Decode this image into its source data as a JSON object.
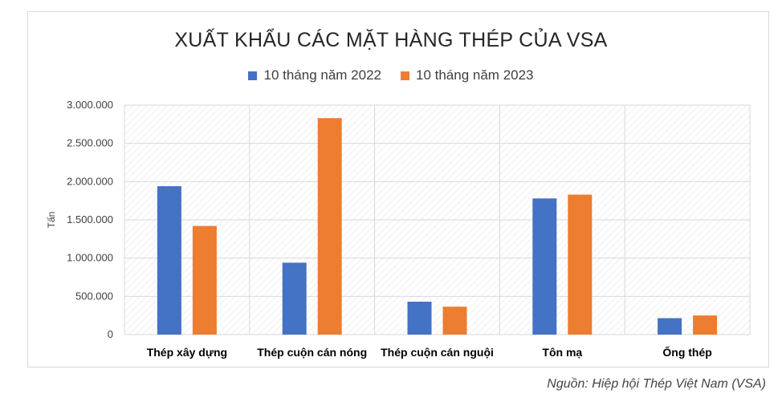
{
  "chart_data": {
    "type": "bar",
    "title": "XUẤT KHẨU CÁC MẶT HÀNG THÉP CỦA VSA",
    "ylabel": "Tấn",
    "xlabel": "",
    "categories": [
      "Thép xây dựng",
      "Thép cuộn cán nóng",
      "Thép cuộn cán nguội",
      "Tôn mạ",
      "Ống thép"
    ],
    "series": [
      {
        "name": "10 tháng năm 2022",
        "color": "#4472c4",
        "values": [
          1940000,
          940000,
          430000,
          1780000,
          215000
        ]
      },
      {
        "name": "10 tháng năm 2023",
        "color": "#ed7d31",
        "values": [
          1420000,
          2830000,
          365000,
          1830000,
          250000
        ]
      }
    ],
    "ylim": [
      0,
      3000000
    ],
    "yticks": [
      0,
      500000,
      1000000,
      1500000,
      2000000,
      2500000,
      3000000
    ],
    "ytick_labels": [
      "0",
      "500.000",
      "1.000.000",
      "1.500.000",
      "2.000.000",
      "2.500.000",
      "3.000.000"
    ],
    "grid": true,
    "legend_position": "top"
  },
  "source_note": "Nguồn: Hiệp hội Thép Việt Nam (VSA)"
}
